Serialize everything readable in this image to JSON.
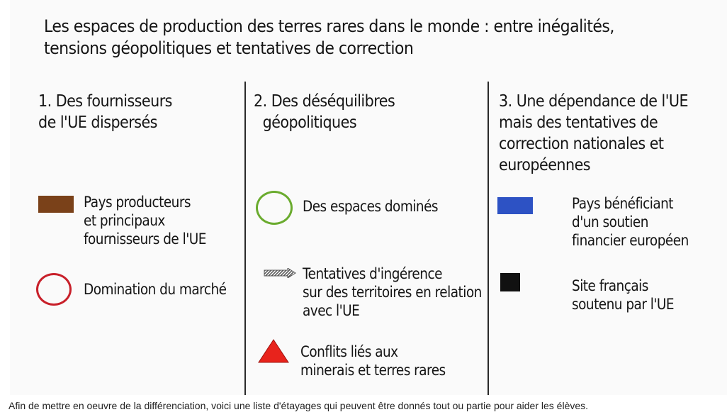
{
  "title": {
    "line1": "Les espaces de production des terres rares dans le monde : entre inégalités,",
    "line2": "tensions géopolitiques et tentatives de correction"
  },
  "columns": [
    {
      "heading": [
        "1. Des fournisseurs",
        "de l'UE dispersés"
      ],
      "items": [
        {
          "symbol": "brown-rectangle",
          "color": "#7a4119",
          "lines": [
            "Pays producteurs",
            "et principaux",
            "fournisseurs de l'UE"
          ]
        },
        {
          "symbol": "red-circle",
          "color": "#c8202a",
          "lines": [
            "Domination du marché"
          ]
        }
      ]
    },
    {
      "heading": [
        "2. Des déséquilibres",
        "géopolitiques"
      ],
      "items": [
        {
          "symbol": "green-circle",
          "color": "#6aab2e",
          "lines": [
            "Des espaces dominés"
          ]
        },
        {
          "symbol": "hatched-arrow",
          "color": "#777777",
          "lines": [
            "Tentatives d'ingérence",
            "sur des territoires en relation",
            "avec l'UE"
          ]
        },
        {
          "symbol": "red-triangle",
          "color": "#e8231c",
          "lines": [
            "Conflits liés aux",
            "minerais et terres rares"
          ]
        }
      ]
    },
    {
      "heading": [
        "3. Une dépendance de l'UE",
        "mais des tentatives de",
        "correction nationales et",
        "européennes"
      ],
      "items": [
        {
          "symbol": "blue-rectangle",
          "color": "#2d52c4",
          "lines": [
            "Pays bénéficiant",
            "d'un soutien",
            "financier européen"
          ]
        },
        {
          "symbol": "black-square",
          "color": "#111111",
          "lines": [
            "Site français",
            "soutenu par l'UE"
          ]
        }
      ]
    }
  ],
  "caption": "Afin de mettre en oeuvre de la différenciation, voici une liste d'étayages qui peuvent être donnés tout ou partie pour aider les élèves."
}
